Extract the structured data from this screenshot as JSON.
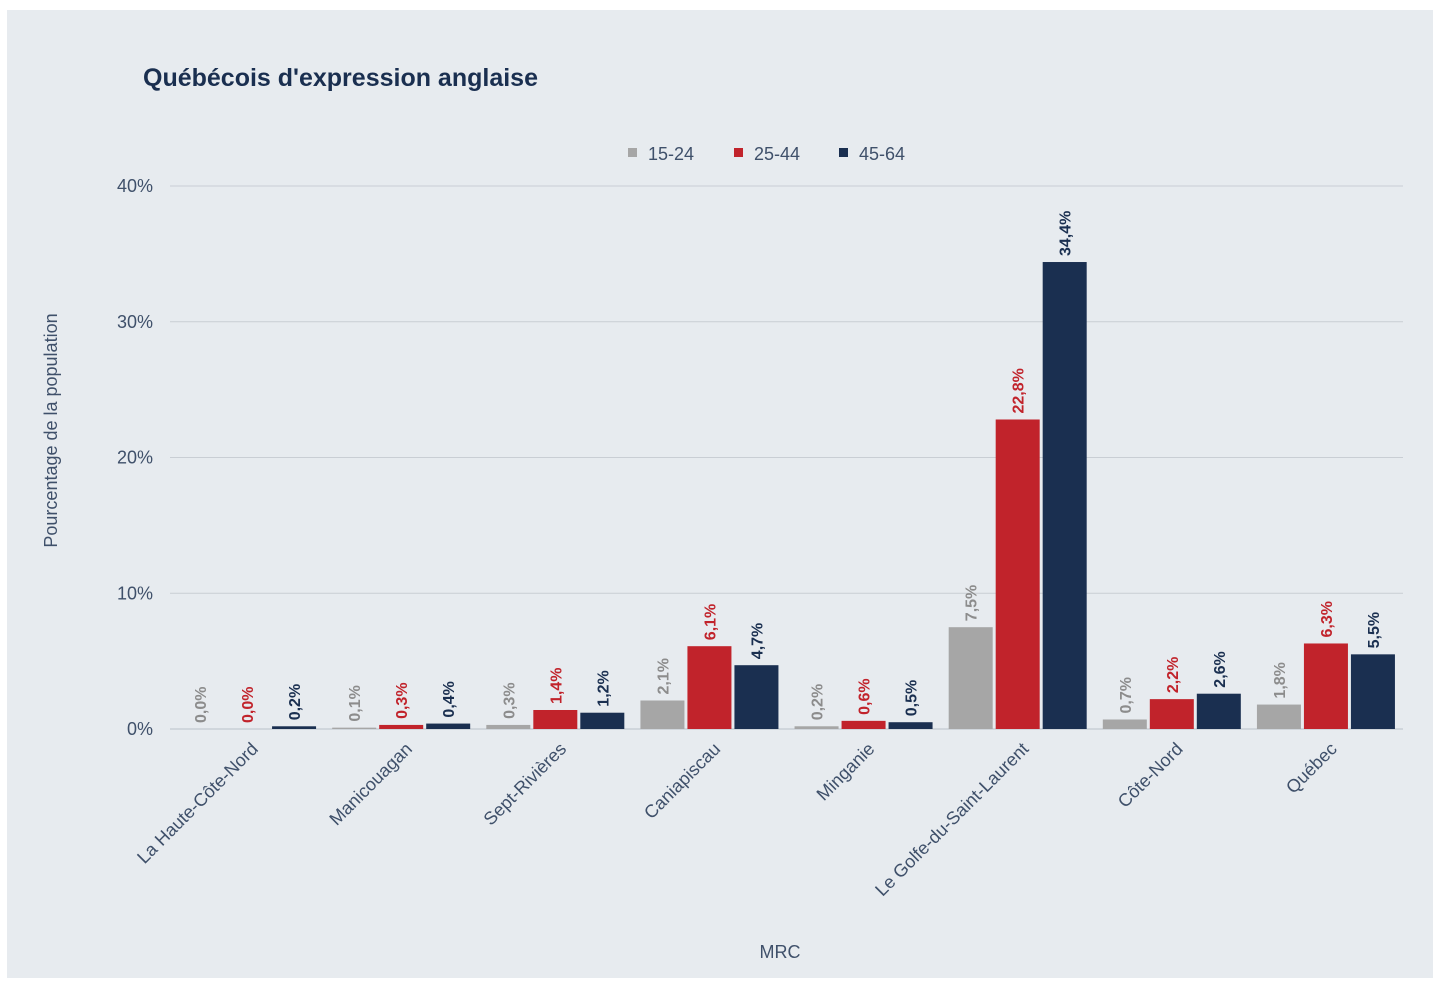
{
  "chart_data": {
    "type": "bar",
    "title": "Québécois d'expression anglaise",
    "xlabel": "MRC",
    "ylabel": "Pourcentage de la population",
    "categories": [
      "La Haute-Côte-Nord",
      "Manicouagan",
      "Sept-Rivières",
      "Caniapiscau",
      "Minganie",
      "Le Golfe-du-Saint-Laurent",
      "Côte-Nord",
      "Québec"
    ],
    "series": [
      {
        "name": "15-24",
        "color": "#a6a6a6",
        "values": [
          0.0,
          0.1,
          0.3,
          2.1,
          0.2,
          7.5,
          0.7,
          1.8
        ],
        "labels": [
          "0,0%",
          "0,1%",
          "0,3%",
          "2,1%",
          "0,2%",
          "7,5%",
          "0,7%",
          "1,8%"
        ]
      },
      {
        "name": "25-44",
        "color": "#c1232b",
        "values": [
          0.0,
          0.3,
          1.4,
          6.1,
          0.6,
          22.8,
          2.2,
          6.3
        ],
        "labels": [
          "0,0%",
          "0,3%",
          "1,4%",
          "6,1%",
          "0,6%",
          "22,8%",
          "2,2%",
          "6,3%"
        ]
      },
      {
        "name": "45-64",
        "color": "#1a2f50",
        "values": [
          0.2,
          0.4,
          1.2,
          4.7,
          0.5,
          34.4,
          2.6,
          5.5
        ],
        "labels": [
          "0,2%",
          "0,4%",
          "1,2%",
          "4,7%",
          "0,5%",
          "34,4%",
          "2,6%",
          "5,5%"
        ]
      }
    ],
    "yticks": [
      0,
      10,
      20,
      30,
      40
    ],
    "ytick_labels": [
      "0%",
      "10%",
      "20%",
      "30%",
      "40%"
    ],
    "ylim": [
      0,
      40
    ],
    "grid": true,
    "legend": "top-center"
  }
}
